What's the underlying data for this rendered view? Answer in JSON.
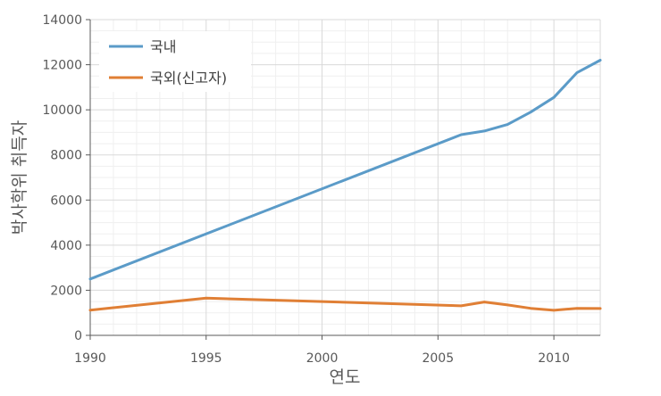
{
  "chart_data": {
    "type": "line",
    "xlabel": "연도",
    "ylabel": "박사학위 취득자",
    "xlim": [
      1990,
      2012
    ],
    "ylim": [
      0,
      14000
    ],
    "x_ticks": [
      "1990",
      "1995",
      "2000",
      "2005",
      "2010"
    ],
    "y_ticks": [
      "0",
      "2000",
      "4000",
      "6000",
      "8000",
      "10000",
      "12000",
      "14000"
    ],
    "grid": true,
    "legend_position": "top-left",
    "series": [
      {
        "name": "국내",
        "color": "#5b9bc8",
        "points": [
          [
            1990,
            2500
          ],
          [
            2006,
            8900
          ],
          [
            2007,
            9060
          ],
          [
            2008,
            9350
          ],
          [
            2009,
            9900
          ],
          [
            2010,
            10550
          ],
          [
            2011,
            11650
          ],
          [
            2012,
            12200
          ]
        ]
      },
      {
        "name": "국외(신고자)",
        "color": "#e07f35",
        "points": [
          [
            1990,
            1120
          ],
          [
            1995,
            1650
          ],
          [
            2000,
            1500
          ],
          [
            2006,
            1310
          ],
          [
            2007,
            1480
          ],
          [
            2008,
            1350
          ],
          [
            2009,
            1200
          ],
          [
            2010,
            1110
          ],
          [
            2011,
            1200
          ],
          [
            2012,
            1190
          ]
        ]
      }
    ]
  }
}
